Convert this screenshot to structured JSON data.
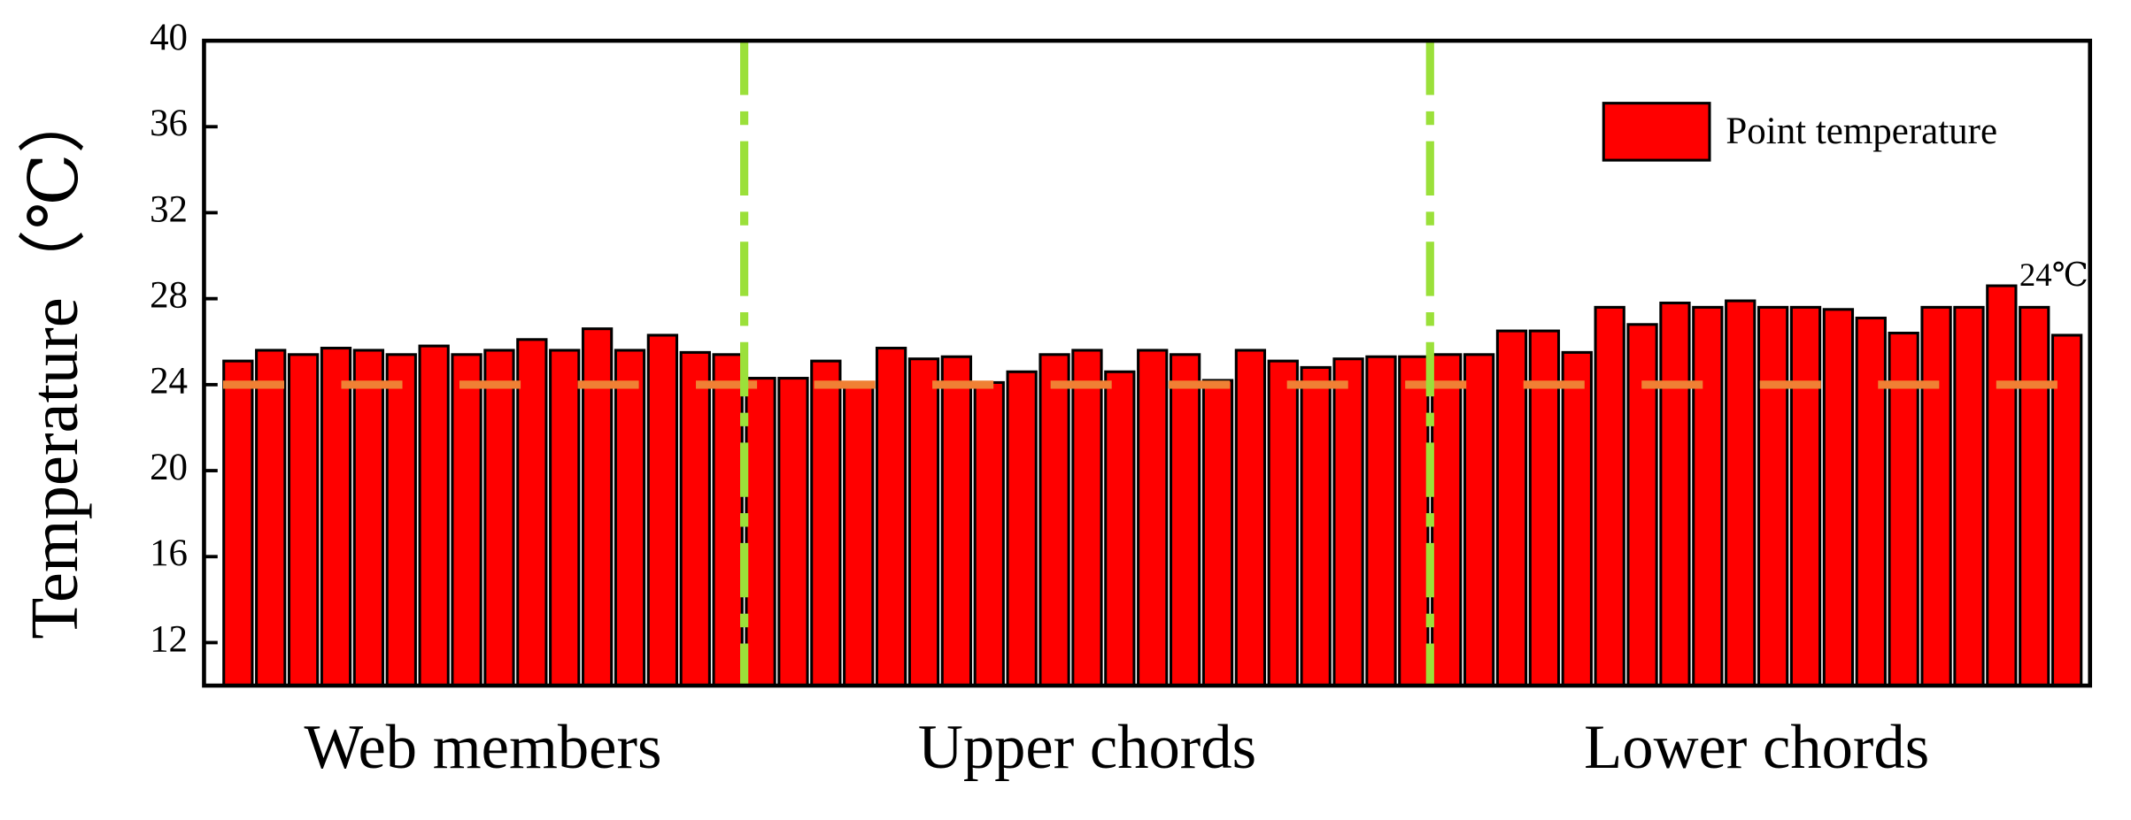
{
  "chart_data": {
    "type": "bar",
    "y_label": "Temperature（℃）",
    "ylim": [
      10,
      40
    ],
    "yticks": [
      12,
      16,
      20,
      24,
      28,
      32,
      36,
      40
    ],
    "series_name": "Point temperature",
    "color": "#ff0000",
    "legend": "top-right",
    "groups": [
      {
        "label": "Web members",
        "values": [
          25.1,
          25.6,
          25.4,
          25.7,
          25.6,
          25.4,
          25.8,
          25.4,
          25.6,
          26.1,
          25.6,
          26.6,
          25.6,
          26.3,
          25.5,
          25.4
        ]
      },
      {
        "label": "Upper chords",
        "values": [
          24.3,
          24.3,
          25.1,
          24.1,
          25.7,
          25.2,
          25.3,
          24.1,
          24.6,
          25.4,
          25.6,
          24.6,
          25.6,
          25.4,
          24.2,
          25.6,
          25.1,
          24.8,
          25.2,
          25.3,
          25.3
        ]
      },
      {
        "label": "Lower chords",
        "values": [
          25.4,
          25.4,
          26.5,
          26.5,
          25.5,
          27.6,
          26.8,
          27.8,
          27.6,
          27.9,
          27.6,
          27.6,
          27.5,
          27.1,
          26.4,
          27.6,
          27.6,
          28.6,
          27.6,
          26.3
        ]
      }
    ],
    "divider_color": "#9be03a",
    "reference_line": {
      "value": 24,
      "label": "24℃",
      "color": "#f08034"
    }
  }
}
